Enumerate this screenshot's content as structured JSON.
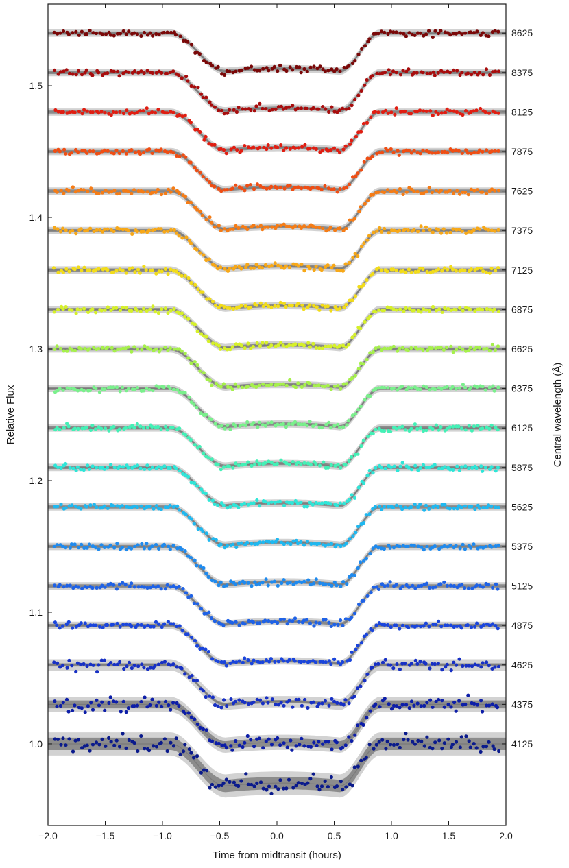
{
  "chart_data": {
    "type": "scatter",
    "title": "",
    "xlabel": "Time from midtransit (hours)",
    "ylabel": "Relative Flux",
    "y2label": "Central wavelength (Å)",
    "xlim": [
      -2.0,
      2.0
    ],
    "ylim": [
      0.938,
      1.562
    ],
    "x_ticks": [
      -2.0,
      -1.5,
      -1.0,
      -0.5,
      0.0,
      0.5,
      1.0,
      1.5,
      2.0
    ],
    "x_tick_labels": [
      "−2.0",
      "−1.5",
      "−1.0",
      "−0.5",
      "0.0",
      "0.5",
      "1.0",
      "1.5",
      "2.0"
    ],
    "y_ticks": [
      1.0,
      1.1,
      1.2,
      1.3,
      1.4,
      1.5
    ],
    "y_tick_labels": [
      "1.0",
      "1.1",
      "1.2",
      "1.3",
      "1.4",
      "1.5"
    ],
    "grid": false,
    "legend": "none",
    "transit_shape": {
      "x_ingress_start": -0.93,
      "x_full_start": -0.45,
      "x_full_end": 0.55,
      "x_egress_end": 0.9
    },
    "model_colors": {
      "inner_band": "#8c8c8c",
      "outer_band": "#d2d2d2",
      "model_line": "#7a7a7a"
    },
    "series": [
      {
        "name": "4125",
        "baseline": 1.0,
        "depth": 0.032,
        "color": "#0a1a8c"
      },
      {
        "name": "4375",
        "baseline": 1.03,
        "depth": 0.031,
        "color": "#0d1ea8"
      },
      {
        "name": "4625",
        "baseline": 1.06,
        "depth": 0.03,
        "color": "#1730c4"
      },
      {
        "name": "4875",
        "baseline": 1.09,
        "depth": 0.029,
        "color": "#1a45dc"
      },
      {
        "name": "5125",
        "baseline": 1.12,
        "depth": 0.029,
        "color": "#1f62e6"
      },
      {
        "name": "5375",
        "baseline": 1.15,
        "depth": 0.029,
        "color": "#1f8aee"
      },
      {
        "name": "5625",
        "baseline": 1.18,
        "depth": 0.029,
        "color": "#1fb8f0"
      },
      {
        "name": "5875",
        "baseline": 1.21,
        "depth": 0.029,
        "color": "#2fe6d8"
      },
      {
        "name": "6125",
        "baseline": 1.24,
        "depth": 0.029,
        "color": "#44f0b6"
      },
      {
        "name": "6375",
        "baseline": 1.27,
        "depth": 0.029,
        "color": "#7af08c"
      },
      {
        "name": "6625",
        "baseline": 1.3,
        "depth": 0.029,
        "color": "#a6f04c"
      },
      {
        "name": "6875",
        "baseline": 1.33,
        "depth": 0.029,
        "color": "#d6f02a"
      },
      {
        "name": "7125",
        "baseline": 1.36,
        "depth": 0.029,
        "color": "#f2dc1a"
      },
      {
        "name": "7375",
        "baseline": 1.39,
        "depth": 0.029,
        "color": "#f7a818"
      },
      {
        "name": "7625",
        "baseline": 1.42,
        "depth": 0.029,
        "color": "#f57c16"
      },
      {
        "name": "7875",
        "baseline": 1.45,
        "depth": 0.029,
        "color": "#ef4e14"
      },
      {
        "name": "8125",
        "baseline": 1.48,
        "depth": 0.029,
        "color": "#e01e12"
      },
      {
        "name": "8375",
        "baseline": 1.51,
        "depth": 0.029,
        "color": "#a80d0d"
      },
      {
        "name": "8625",
        "baseline": 1.54,
        "depth": 0.029,
        "color": "#7a0808"
      }
    ]
  }
}
